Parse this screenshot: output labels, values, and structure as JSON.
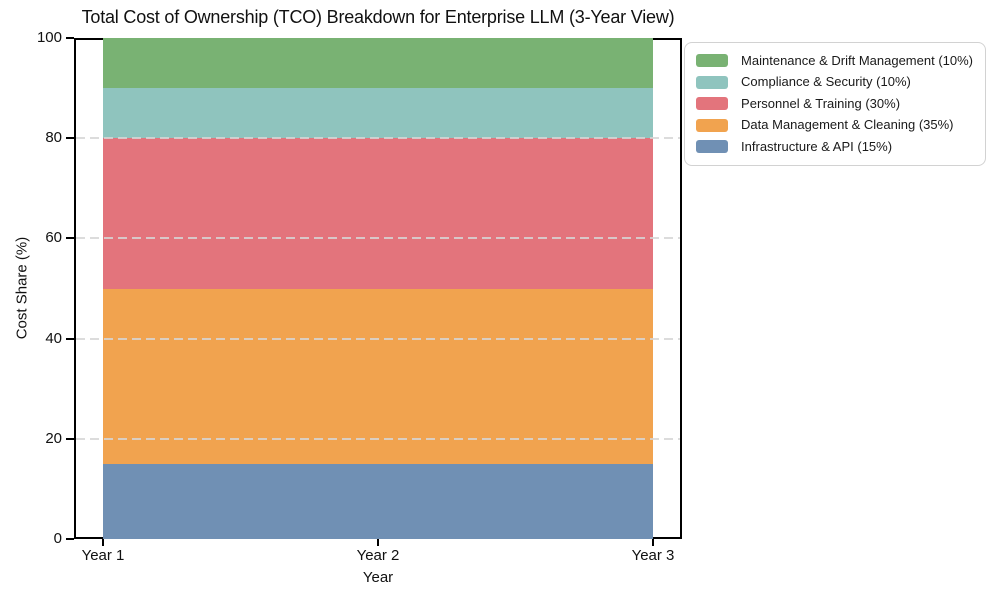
{
  "page": {
    "background_color": "#ffffff",
    "text_color": "#111111",
    "axis_color": "#000000",
    "gridline_color": "#d6d6d6"
  },
  "chart_data": {
    "type": "area",
    "stacked": true,
    "title": "Total Cost of Ownership (TCO) Breakdown for Enterprise LLM (3-Year View)",
    "xlabel": "Year",
    "ylabel": "Cost Share (%)",
    "x_categories": [
      "Year 1",
      "Year 2",
      "Year 3"
    ],
    "ylim": [
      0,
      100
    ],
    "yticks": [
      0,
      20,
      40,
      60,
      80,
      100
    ],
    "grid": {
      "axis": "y",
      "style": "dashed",
      "drawn_over_areas": true
    },
    "legend_position": "upper right",
    "legend_order": "top-of-stack-first",
    "series": [
      {
        "name": "Infrastructure & API (15%)",
        "color": "#7090b4",
        "values": [
          15,
          15,
          15
        ]
      },
      {
        "name": "Data Management & Cleaning (35%)",
        "color": "#f1a34f",
        "values": [
          35,
          35,
          35
        ]
      },
      {
        "name": "Personnel & Training (30%)",
        "color": "#e3747c",
        "values": [
          30,
          30,
          30
        ]
      },
      {
        "name": "Compliance & Security (10%)",
        "color": "#8fc4be",
        "values": [
          10,
          10,
          10
        ]
      },
      {
        "name": "Maintenance & Drift Management (10%)",
        "color": "#79b273",
        "values": [
          10,
          10,
          10
        ]
      }
    ]
  }
}
